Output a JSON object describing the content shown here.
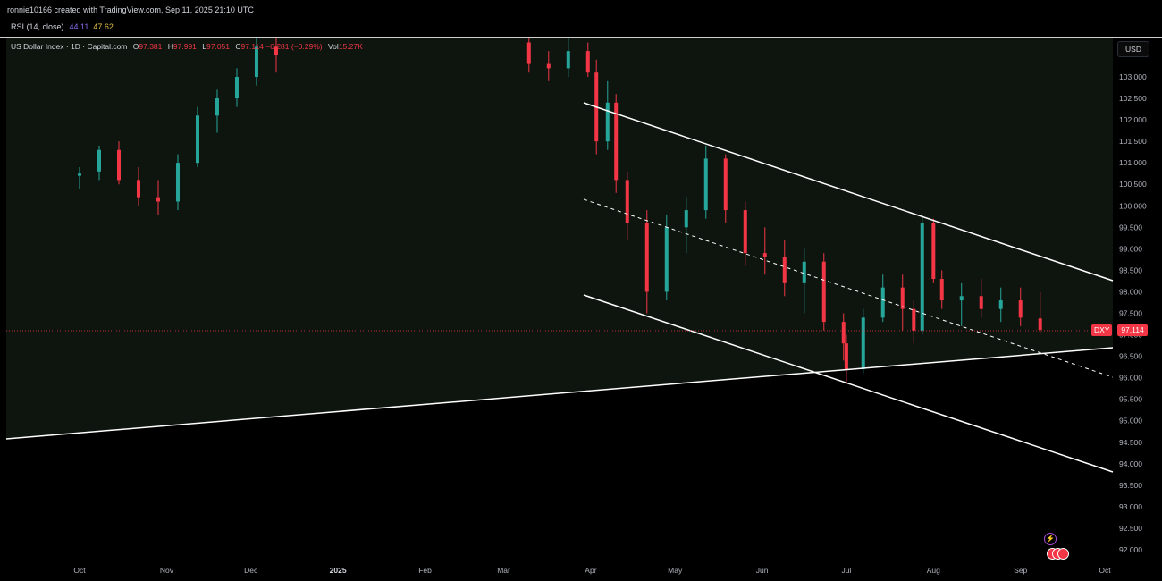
{
  "header": {
    "creator_line": "ronnie10166 created with TradingView.com, Sep 11, 2025 21:10 UTC"
  },
  "rsi": {
    "label": "RSI (14, close)",
    "value1": "44.11",
    "value2": "47.62"
  },
  "legend": {
    "symbol": "US Dollar Index · 1D · Capital.com",
    "o_label": "O",
    "o_value": "97.381",
    "h_label": "H",
    "h_value": "97.991",
    "l_label": "L",
    "l_value": "97.051",
    "c_label": "C",
    "c_value": "97.114",
    "change": "−0.281 (−0.29%)",
    "vol_label": "Vol",
    "vol_value": "15.27K"
  },
  "price_axis": {
    "currency": "USD",
    "symbol_tag": "DXY",
    "last_price": "97.114"
  },
  "colors": {
    "up": "#26a69a",
    "down": "#f23645",
    "background_upper": "#0e150f",
    "trendlines": "#ffffff"
  },
  "chart_data": {
    "type": "candlestick",
    "yticks": [
      "103.000",
      "102.500",
      "102.000",
      "101.500",
      "101.000",
      "100.500",
      "100.000",
      "99.500",
      "99.000",
      "98.500",
      "98.000",
      "97.500",
      "97.000",
      "96.500",
      "96.000",
      "95.500",
      "95.000",
      "94.500",
      "94.000",
      "93.500",
      "93.000",
      "92.500",
      "92.000"
    ],
    "ylim": [
      91.7,
      103.9
    ],
    "xticks": [
      "Oct",
      "Nov",
      "Dec",
      "2025",
      "Feb",
      "Mar",
      "Apr",
      "May",
      "Jun",
      "Jul",
      "Aug",
      "Sep",
      "Oct"
    ],
    "last_close": 97.114,
    "candles": [
      {
        "date": "2024-10-01",
        "o": 100.7,
        "h": 100.9,
        "l": 100.4,
        "c": 100.75
      },
      {
        "date": "2024-10-08",
        "o": 100.8,
        "h": 101.4,
        "l": 100.6,
        "c": 101.3
      },
      {
        "date": "2024-10-15",
        "o": 101.3,
        "h": 101.5,
        "l": 100.5,
        "c": 100.6
      },
      {
        "date": "2024-10-22",
        "o": 100.6,
        "h": 100.9,
        "l": 100.0,
        "c": 100.2
      },
      {
        "date": "2024-10-29",
        "o": 100.2,
        "h": 100.6,
        "l": 99.8,
        "c": 100.1
      },
      {
        "date": "2024-11-05",
        "o": 100.1,
        "h": 101.2,
        "l": 99.9,
        "c": 101.0
      },
      {
        "date": "2024-11-12",
        "o": 101.0,
        "h": 102.3,
        "l": 100.9,
        "c": 102.1
      },
      {
        "date": "2024-11-19",
        "o": 102.1,
        "h": 102.7,
        "l": 101.7,
        "c": 102.5
      },
      {
        "date": "2024-11-26",
        "o": 102.5,
        "h": 103.2,
        "l": 102.3,
        "c": 103.0
      },
      {
        "date": "2024-12-03",
        "o": 103.0,
        "h": 103.9,
        "l": 102.8,
        "c": 103.7
      },
      {
        "date": "2024-12-10",
        "o": 103.7,
        "h": 103.9,
        "l": 103.1,
        "c": 103.5
      },
      {
        "date": "2025-03-10",
        "o": 103.8,
        "h": 103.9,
        "l": 103.1,
        "c": 103.3
      },
      {
        "date": "2025-03-17",
        "o": 103.3,
        "h": 103.6,
        "l": 102.9,
        "c": 103.2
      },
      {
        "date": "2025-03-24",
        "o": 103.2,
        "h": 103.9,
        "l": 103.0,
        "c": 103.6
      },
      {
        "date": "2025-03-31",
        "o": 103.6,
        "h": 103.8,
        "l": 103.0,
        "c": 103.1
      },
      {
        "date": "2025-04-03",
        "o": 103.1,
        "h": 103.4,
        "l": 101.2,
        "c": 101.5
      },
      {
        "date": "2025-04-07",
        "o": 101.5,
        "h": 102.9,
        "l": 101.3,
        "c": 102.4
      },
      {
        "date": "2025-04-10",
        "o": 102.4,
        "h": 102.6,
        "l": 100.3,
        "c": 100.6
      },
      {
        "date": "2025-04-14",
        "o": 100.6,
        "h": 100.8,
        "l": 99.2,
        "c": 99.6
      },
      {
        "date": "2025-04-21",
        "o": 99.6,
        "h": 99.9,
        "l": 97.5,
        "c": 98.0
      },
      {
        "date": "2025-04-28",
        "o": 98.0,
        "h": 99.8,
        "l": 97.8,
        "c": 99.5
      },
      {
        "date": "2025-05-05",
        "o": 99.5,
        "h": 100.2,
        "l": 98.9,
        "c": 99.9
      },
      {
        "date": "2025-05-12",
        "o": 99.9,
        "h": 101.4,
        "l": 99.7,
        "c": 101.1
      },
      {
        "date": "2025-05-19",
        "o": 101.1,
        "h": 101.2,
        "l": 99.6,
        "c": 99.9
      },
      {
        "date": "2025-05-26",
        "o": 99.9,
        "h": 100.1,
        "l": 98.6,
        "c": 98.9
      },
      {
        "date": "2025-06-02",
        "o": 98.9,
        "h": 99.5,
        "l": 98.4,
        "c": 98.8
      },
      {
        "date": "2025-06-09",
        "o": 98.8,
        "h": 99.2,
        "l": 97.9,
        "c": 98.2
      },
      {
        "date": "2025-06-16",
        "o": 98.2,
        "h": 99.0,
        "l": 97.5,
        "c": 98.7
      },
      {
        "date": "2025-06-23",
        "o": 98.7,
        "h": 98.9,
        "l": 97.1,
        "c": 97.3
      },
      {
        "date": "2025-06-30",
        "o": 97.3,
        "h": 97.5,
        "l": 96.4,
        "c": 96.8
      },
      {
        "date": "2025-07-01",
        "o": 96.8,
        "h": 97.0,
        "l": 95.9,
        "c": 96.2
      },
      {
        "date": "2025-07-07",
        "o": 96.2,
        "h": 97.6,
        "l": 96.1,
        "c": 97.4
      },
      {
        "date": "2025-07-14",
        "o": 97.4,
        "h": 98.4,
        "l": 97.3,
        "c": 98.1
      },
      {
        "date": "2025-07-21",
        "o": 98.1,
        "h": 98.4,
        "l": 97.1,
        "c": 97.6
      },
      {
        "date": "2025-07-25",
        "o": 97.6,
        "h": 97.8,
        "l": 96.8,
        "c": 97.1
      },
      {
        "date": "2025-07-28",
        "o": 97.1,
        "h": 99.8,
        "l": 97.0,
        "c": 99.6
      },
      {
        "date": "2025-08-01",
        "o": 99.6,
        "h": 99.7,
        "l": 98.2,
        "c": 98.3
      },
      {
        "date": "2025-08-04",
        "o": 98.3,
        "h": 98.5,
        "l": 97.6,
        "c": 97.8
      },
      {
        "date": "2025-08-11",
        "o": 97.8,
        "h": 98.2,
        "l": 97.2,
        "c": 97.9
      },
      {
        "date": "2025-08-18",
        "o": 97.9,
        "h": 98.3,
        "l": 97.4,
        "c": 97.6
      },
      {
        "date": "2025-08-25",
        "o": 97.6,
        "h": 98.1,
        "l": 97.3,
        "c": 97.8
      },
      {
        "date": "2025-09-01",
        "o": 97.8,
        "h": 98.1,
        "l": 97.2,
        "c": 97.4
      },
      {
        "date": "2025-09-08",
        "o": 97.381,
        "h": 97.991,
        "l": 97.051,
        "c": 97.114
      }
    ]
  }
}
